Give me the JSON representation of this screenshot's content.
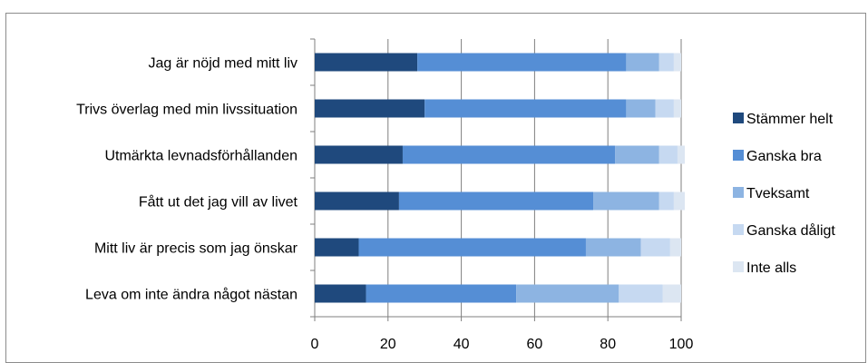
{
  "chart_data": {
    "type": "bar",
    "orientation": "horizontal",
    "stacked": true,
    "categories": [
      "Jag är nöjd med mitt liv",
      "Trivs överlag med min livssituation",
      "Utmärkta levnadsförhållanden",
      "Fått ut det jag vill av livet",
      "Mitt liv är precis som jag önskar",
      "Leva om inte ändra något nästan"
    ],
    "series": [
      {
        "name": "Stämmer helt",
        "color": "#1f497d",
        "values": [
          28,
          30,
          24,
          23,
          12,
          14
        ]
      },
      {
        "name": "Ganska bra",
        "color": "#558ed5",
        "values": [
          57,
          55,
          58,
          53,
          62,
          41
        ]
      },
      {
        "name": "Tveksamt",
        "color": "#8db4e2",
        "values": [
          9,
          8,
          12,
          18,
          15,
          28
        ]
      },
      {
        "name": "Ganska dåligt",
        "color": "#c6d9f1",
        "values": [
          4,
          5,
          5,
          4,
          8,
          12
        ]
      },
      {
        "name": "Inte alls",
        "color": "#dce6f2",
        "values": [
          2,
          2,
          2,
          3,
          3,
          5
        ]
      }
    ],
    "xlim": [
      0,
      100
    ],
    "xticks": [
      0,
      20,
      40,
      60,
      80,
      100
    ],
    "grid": true,
    "legend": "right",
    "title": "",
    "xlabel": "",
    "ylabel": ""
  }
}
